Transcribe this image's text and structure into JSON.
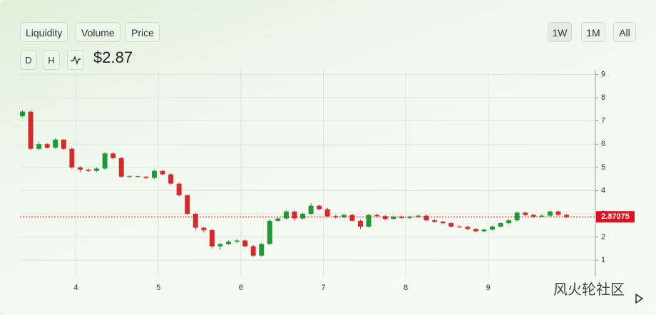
{
  "ui": {
    "data_tabs": [
      "Liquidity",
      "Volume",
      "Price"
    ],
    "period_tabs": [
      "1W",
      "1M",
      "All"
    ],
    "interval_tabs": [
      "D",
      "H"
    ],
    "price": "$2.87"
  },
  "watermark": "风火轮社区",
  "chart_data": {
    "type": "candlestick",
    "x": [
      3.35,
      3.45,
      3.55,
      3.65,
      3.75,
      3.85,
      3.95,
      4.05,
      4.15,
      4.25,
      4.35,
      4.45,
      4.55,
      4.65,
      4.75,
      4.85,
      4.95,
      5.05,
      5.15,
      5.25,
      5.35,
      5.45,
      5.55,
      5.65,
      5.75,
      5.85,
      5.95,
      6.05,
      6.15,
      6.25,
      6.35,
      6.45,
      6.55,
      6.65,
      6.75,
      6.85,
      6.95,
      7.05,
      7.15,
      7.25,
      7.35,
      7.45,
      7.55,
      7.65,
      7.75,
      7.85,
      7.95,
      8.05,
      8.15,
      8.25,
      8.35,
      8.45,
      8.55,
      8.65,
      8.75,
      8.85,
      8.95,
      9.05,
      9.15,
      9.25,
      9.35,
      9.45,
      9.55,
      9.65,
      9.75,
      9.85,
      9.95
    ],
    "open": [
      7.2,
      7.4,
      5.8,
      6.0,
      5.85,
      6.2,
      5.8,
      5.0,
      4.9,
      4.85,
      4.95,
      5.6,
      5.4,
      4.6,
      4.62,
      4.6,
      4.55,
      4.85,
      4.7,
      4.3,
      3.8,
      3.0,
      2.4,
      2.3,
      1.6,
      1.7,
      1.8,
      1.85,
      1.6,
      1.2,
      1.7,
      2.7,
      2.8,
      3.1,
      2.8,
      3.0,
      3.35,
      3.2,
      2.9,
      2.85,
      2.95,
      2.7,
      2.45,
      2.95,
      2.9,
      2.78,
      2.88,
      2.82,
      2.87,
      2.92,
      2.72,
      2.66,
      2.6,
      2.45,
      2.44,
      2.35,
      2.25,
      2.32,
      2.45,
      2.6,
      2.72,
      3.05,
      2.95,
      2.88,
      2.92,
      3.1,
      2.95
    ],
    "high": [
      7.45,
      7.45,
      6.1,
      6.05,
      6.25,
      6.2,
      5.85,
      5.05,
      4.95,
      5.0,
      5.65,
      5.65,
      5.45,
      4.65,
      4.65,
      4.62,
      4.9,
      4.9,
      4.75,
      4.35,
      3.85,
      3.05,
      2.45,
      2.35,
      1.75,
      1.85,
      1.9,
      1.9,
      1.65,
      1.75,
      2.75,
      2.85,
      3.15,
      3.15,
      3.05,
      3.45,
      3.4,
      3.25,
      2.95,
      3.0,
      3.0,
      2.75,
      3.0,
      3.0,
      2.95,
      2.93,
      2.93,
      2.92,
      2.97,
      2.97,
      2.77,
      2.7,
      2.65,
      2.5,
      2.48,
      2.4,
      2.36,
      2.5,
      2.65,
      2.78,
      3.1,
      3.1,
      3.0,
      2.97,
      3.15,
      3.15,
      3.0
    ],
    "low": [
      7.15,
      5.75,
      5.75,
      5.8,
      5.8,
      5.75,
      4.95,
      4.8,
      4.8,
      4.8,
      4.9,
      5.35,
      4.55,
      4.55,
      4.55,
      4.5,
      4.5,
      4.65,
      4.25,
      3.75,
      2.95,
      2.3,
      2.2,
      1.5,
      1.45,
      1.65,
      1.75,
      1.55,
      1.15,
      1.15,
      1.65,
      2.65,
      2.75,
      2.7,
      2.75,
      2.95,
      3.15,
      2.85,
      2.8,
      2.8,
      2.65,
      2.35,
      2.4,
      2.85,
      2.72,
      2.75,
      2.78,
      2.78,
      2.82,
      2.68,
      2.62,
      2.55,
      2.4,
      2.4,
      2.3,
      2.2,
      2.2,
      2.28,
      2.4,
      2.55,
      2.68,
      2.9,
      2.82,
      2.84,
      2.88,
      2.9,
      2.82
    ],
    "close": [
      7.4,
      5.8,
      6.0,
      5.85,
      6.2,
      5.8,
      5.0,
      4.9,
      4.85,
      4.95,
      5.6,
      5.4,
      4.6,
      4.62,
      4.6,
      4.55,
      4.85,
      4.7,
      4.3,
      3.8,
      3.0,
      2.4,
      2.3,
      1.6,
      1.7,
      1.8,
      1.85,
      1.6,
      1.2,
      1.7,
      2.7,
      2.8,
      3.1,
      2.8,
      3.0,
      3.35,
      3.2,
      2.9,
      2.85,
      2.95,
      2.7,
      2.45,
      2.95,
      2.9,
      2.78,
      2.88,
      2.82,
      2.87,
      2.92,
      2.72,
      2.66,
      2.6,
      2.45,
      2.44,
      2.35,
      2.25,
      2.32,
      2.45,
      2.6,
      2.72,
      3.05,
      2.95,
      2.88,
      2.92,
      3.1,
      2.95,
      2.87
    ],
    "up_color": "#1e9a33",
    "down_color": "#d42a2a",
    "last_price": 2.87075,
    "last_price_color": "#e0101e",
    "xlim": [
      3.32,
      10.3
    ],
    "xticks": [
      4,
      5,
      6,
      7,
      8,
      9
    ],
    "ylim": [
      0.3,
      9.2
    ],
    "yticks": [
      1,
      2,
      3,
      4,
      5,
      6,
      7,
      8,
      9
    ],
    "grid": true
  }
}
